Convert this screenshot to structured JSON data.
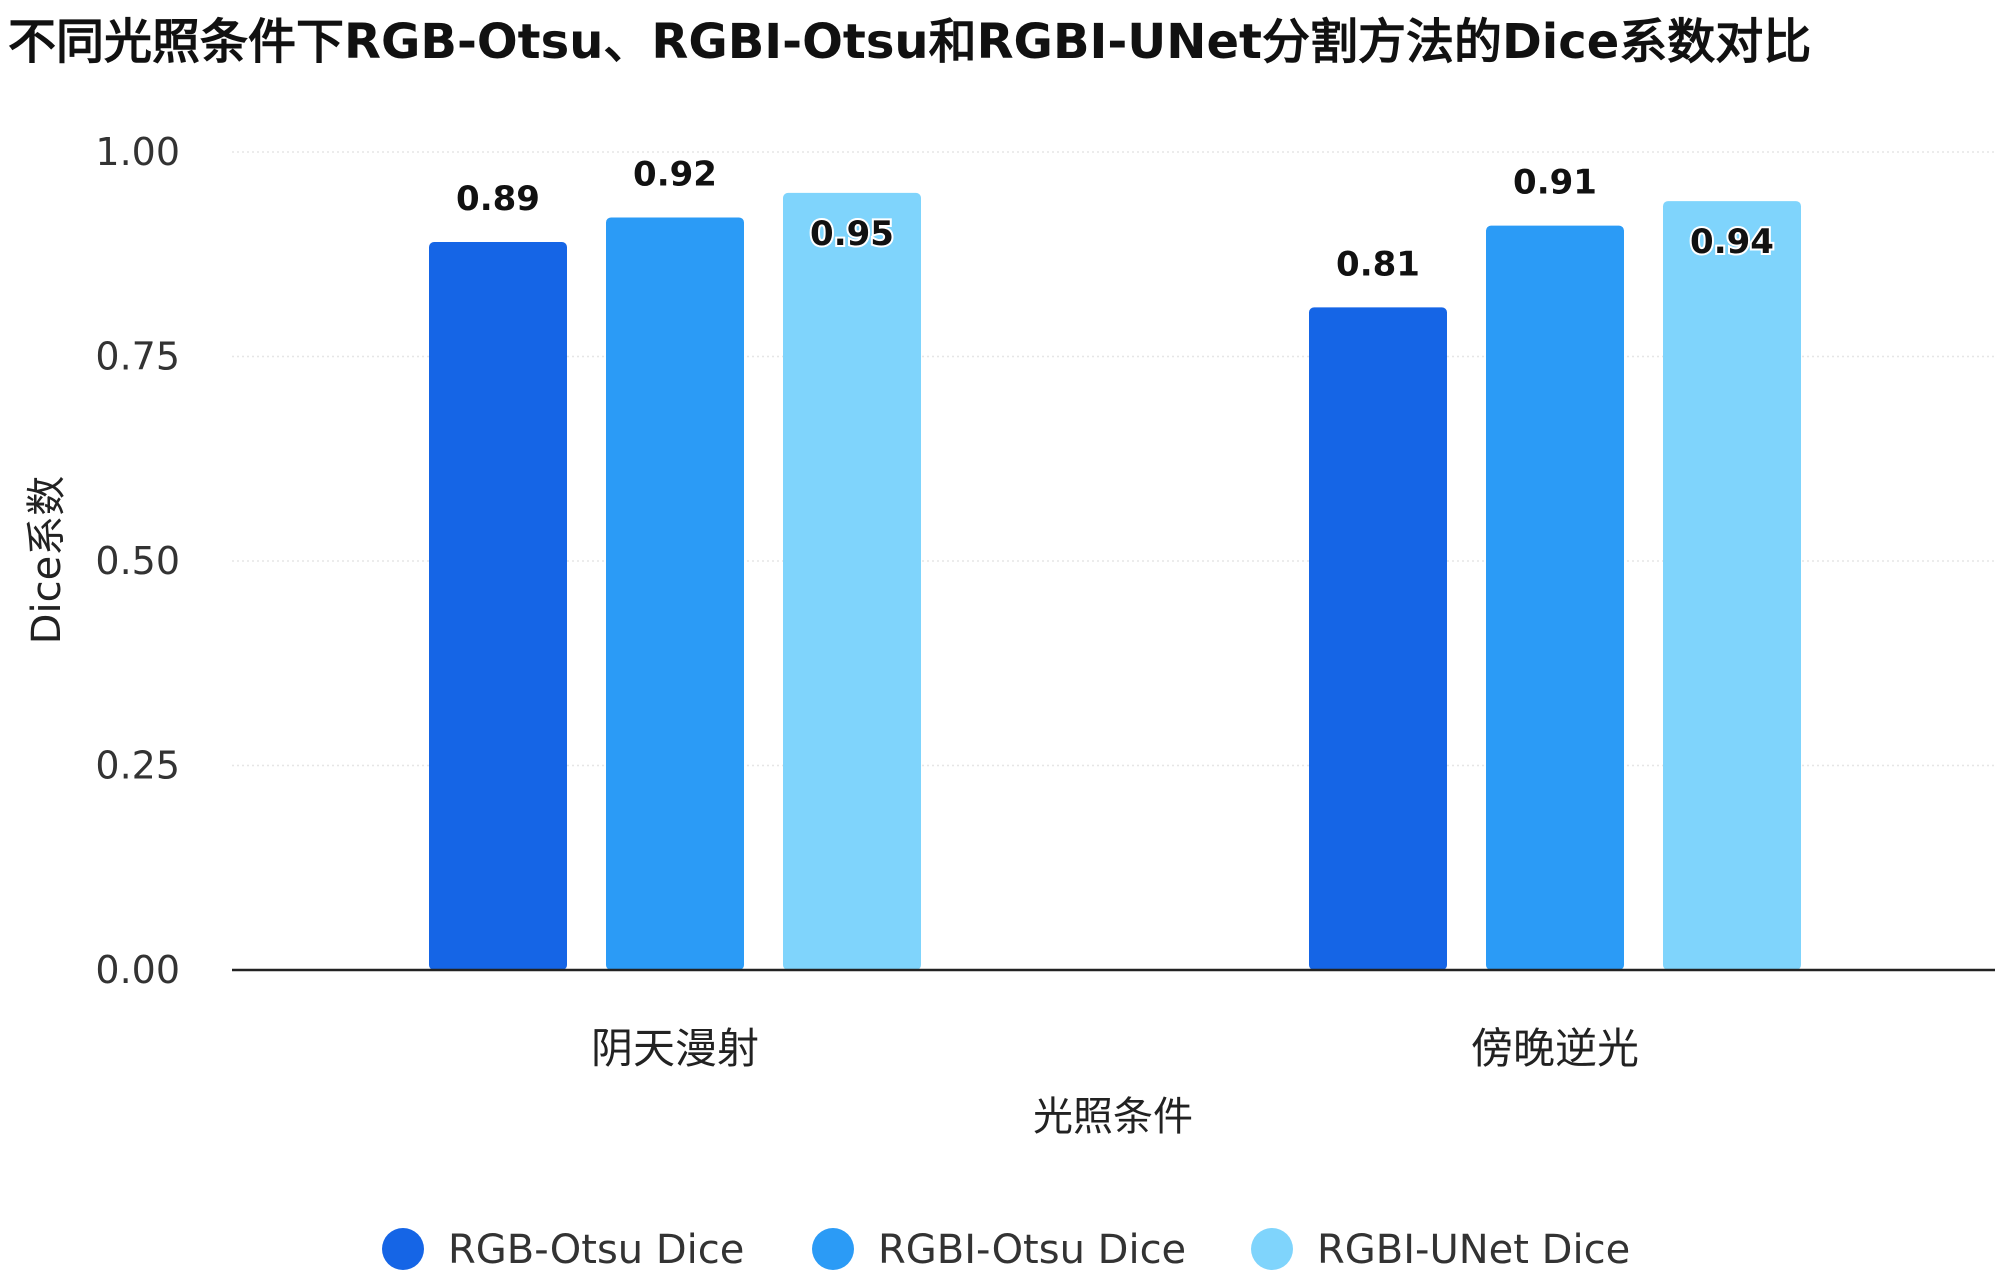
{
  "chart_data": {
    "type": "bar",
    "title": "不同光照条件下RGB-Otsu、RGBI-Otsu和RGBI-UNet分割方法的Dice系数对比",
    "xlabel": "光照条件",
    "ylabel": "Dice系数",
    "categories": [
      "阴天漫射",
      "傍晚逆光"
    ],
    "series": [
      {
        "name": "RGB-Otsu Dice",
        "values": [
          0.89,
          0.81
        ],
        "color": "#1565e6"
      },
      {
        "name": "RGBI-Otsu Dice",
        "values": [
          0.92,
          0.91
        ],
        "color": "#2b9bf6"
      },
      {
        "name": "RGBI-UNet Dice",
        "values": [
          0.95,
          0.94
        ],
        "color": "#7fd4fc"
      }
    ],
    "data_labels": [
      [
        "0.89",
        "0.81"
      ],
      [
        "0.92",
        "0.91"
      ],
      [
        "0.95",
        "0.94"
      ]
    ],
    "ylim": [
      0,
      1
    ],
    "yticks": [
      "0.00",
      "0.25",
      "0.50",
      "0.75",
      "1.00"
    ],
    "grid": true,
    "legend_position": "bottom"
  }
}
